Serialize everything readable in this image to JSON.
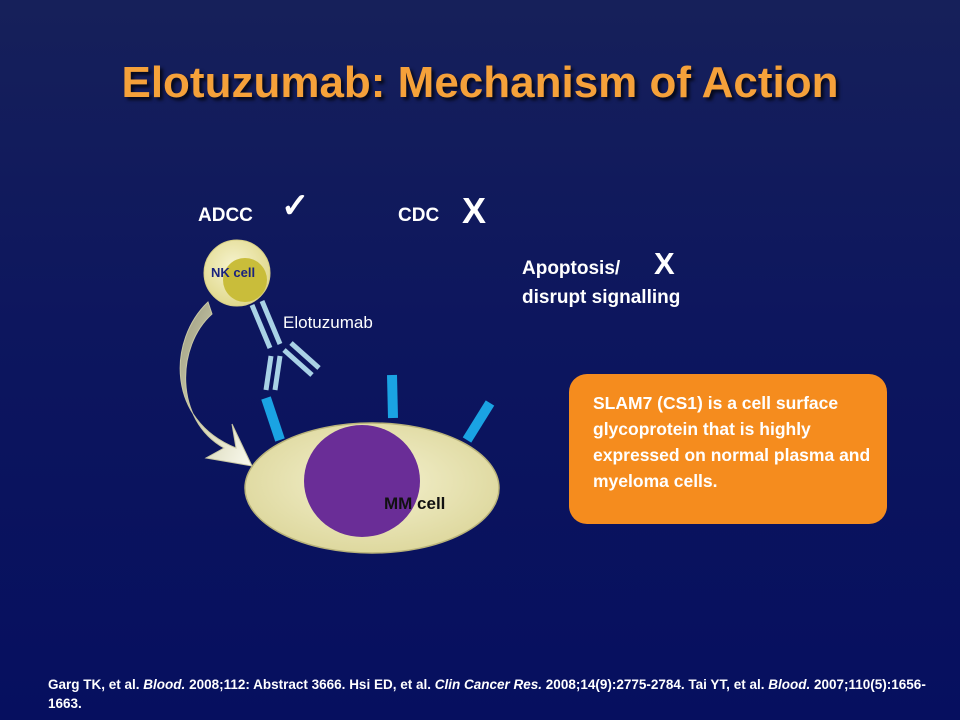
{
  "title": "Elotuzumab: Mechanism of Action",
  "labels": {
    "adcc": "ADCC",
    "adcc_mark": "✓",
    "cdc": "CDC",
    "cdc_mark": "X",
    "apoptosis_line1": "Apoptosis/",
    "apoptosis_mark": "X",
    "apoptosis_line2": "disrupt signalling",
    "nk_cell": "NK cell",
    "elotuzumab": "Elotuzumab",
    "mm_cell": "MM cell"
  },
  "callout": {
    "text": "SLAM7 (CS1) is a cell surface glycoprotein that is highly expressed on normal plasma and myeloma cells."
  },
  "footer": {
    "ref1_author": "Garg TK, et al.",
    "ref1_journal": "Blood.",
    "ref1_detail": "2008;112: Abstract 3666.",
    "ref2_author": "Hsi ED, et al.",
    "ref2_journal": "Clin Cancer Res.",
    "ref2_detail": "2008;14(9):2775-2784.",
    "ref3_author": "Tai YT, et al.",
    "ref3_journal": "Blood.",
    "ref3_detail": "2007;110(5):1656-1663."
  },
  "colors": {
    "title": "#f5a13a",
    "callout_bg": "#f58c1e",
    "cell_body": "#e8e4b0",
    "nucleus": "#6a2d97",
    "receptor": "#1aa3e3",
    "antibody": "#a9d2e6"
  }
}
